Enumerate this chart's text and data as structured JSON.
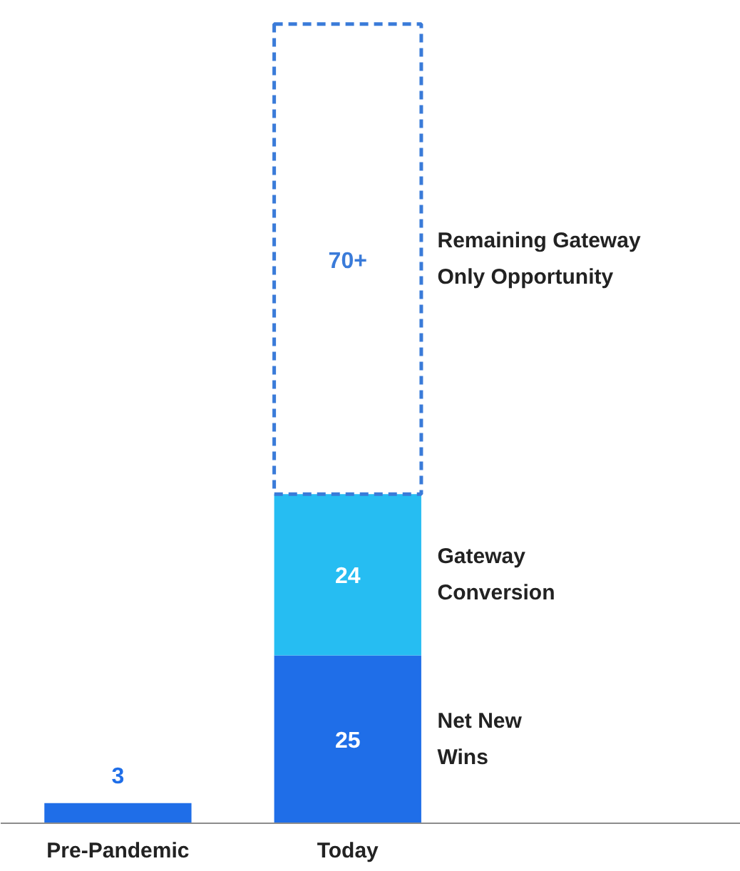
{
  "chart_data": {
    "type": "bar",
    "stacked": true,
    "categories": [
      "Pre-Pandemic",
      "Today"
    ],
    "series": [
      {
        "name": "Net New Wins",
        "color": "#1f6ee8",
        "values": [
          3,
          25
        ],
        "value_labels": [
          "3",
          "25"
        ]
      },
      {
        "name": "Gateway Conversion",
        "color": "#26bdf2",
        "values": [
          null,
          24
        ],
        "value_labels": [
          null,
          "24"
        ]
      },
      {
        "name": "Remaining Gateway Only Opportunity",
        "color": "#3a7bd9",
        "line_style": "dashed",
        "values": [
          null,
          70
        ],
        "value_labels": [
          null,
          "70+"
        ]
      }
    ]
  }
}
